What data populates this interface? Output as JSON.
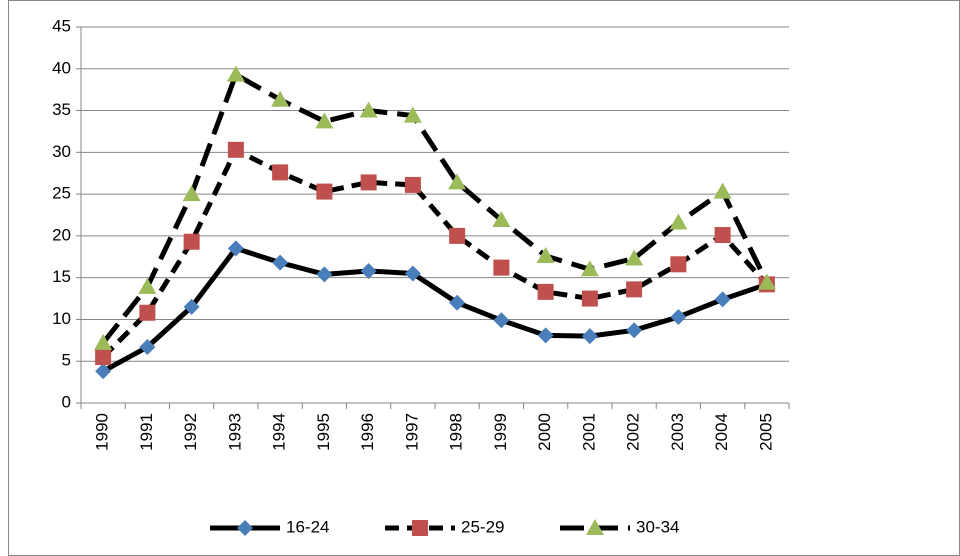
{
  "chart_data": {
    "type": "line",
    "categories": [
      "1990",
      "1991",
      "1992",
      "1993",
      "1994",
      "1995",
      "1996",
      "1997",
      "1998",
      "1999",
      "2000",
      "2001",
      "2002",
      "2003",
      "2004",
      "2005"
    ],
    "series": [
      {
        "name": "16-24",
        "color": "#4a7ebb",
        "line_style": "solid",
        "marker": "diamond",
        "values": [
          3.8,
          6.7,
          11.5,
          18.5,
          16.8,
          15.4,
          15.8,
          15.5,
          12.0,
          9.9,
          8.1,
          8.0,
          8.7,
          10.3,
          12.4,
          14.2
        ]
      },
      {
        "name": "25-29",
        "color": "#c0504d",
        "line_style": "dashed",
        "marker": "square",
        "values": [
          5.5,
          10.8,
          19.3,
          30.3,
          27.6,
          25.3,
          26.4,
          26.1,
          20.0,
          16.2,
          13.3,
          12.5,
          13.6,
          16.6,
          20.1,
          14.2
        ]
      },
      {
        "name": "30-34",
        "color": "#9bbb59",
        "line_style": "long-dash",
        "marker": "triangle",
        "values": [
          7.2,
          13.9,
          25.0,
          39.3,
          36.3,
          33.7,
          35.0,
          34.4,
          26.4,
          21.9,
          17.6,
          16.0,
          17.3,
          21.6,
          25.3,
          14.4
        ]
      }
    ],
    "ylim": [
      0,
      45
    ],
    "yticks": [
      0,
      5,
      10,
      15,
      20,
      25,
      30,
      35,
      40,
      45
    ],
    "grid": true,
    "legend": "bottom"
  }
}
